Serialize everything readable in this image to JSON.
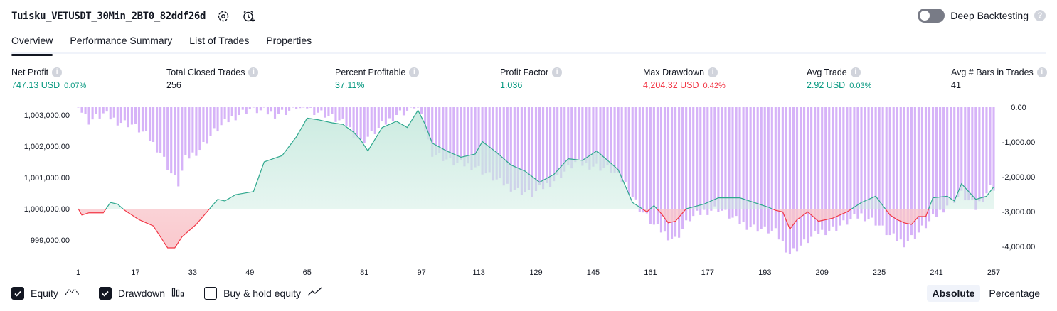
{
  "header": {
    "strategy_name": "Tuisku_VETUSDT_30Min_2BT0_82ddf26d",
    "icons": [
      "settings-gear-icon",
      "add-alert-clock-icon"
    ],
    "deep_backtesting_label": "Deep Backtesting",
    "deep_backtesting_enabled": false,
    "help_glyph": "?"
  },
  "tabs": [
    {
      "label": "Overview",
      "active": true
    },
    {
      "label": "Performance Summary",
      "active": false
    },
    {
      "label": "List of Trades",
      "active": false
    },
    {
      "label": "Properties",
      "active": false
    }
  ],
  "metrics": [
    {
      "label": "Net Profit",
      "value": "747.13 USD",
      "pct": "0.07%",
      "color": "green"
    },
    {
      "label": "Total Closed Trades",
      "value": "256",
      "pct": "",
      "color": "black"
    },
    {
      "label": "Percent Profitable",
      "value": "37.11%",
      "pct": "",
      "color": "green"
    },
    {
      "label": "Profit Factor",
      "value": "1.036",
      "pct": "",
      "color": "green"
    },
    {
      "label": "Max Drawdown",
      "value": "4,204.32 USD",
      "pct": "0.42%",
      "color": "red"
    },
    {
      "label": "Avg Trade",
      "value": "2.92 USD",
      "pct": "0.03%",
      "color": "green"
    },
    {
      "label": "Avg # Bars in Trades",
      "value": "41",
      "pct": "",
      "color": "black"
    }
  ],
  "colors": {
    "profit": "#089981",
    "loss": "#f23645",
    "equity_line_up": "#2fa88e",
    "equity_line_down": "#f23645",
    "equity_fill_up": "#c9eadf",
    "equity_fill_down": "#f9c6cb",
    "drawdown_bar": "#cfa6f7",
    "text": "#131722"
  },
  "chart_data": {
    "type": "line",
    "baseline": 1000000,
    "left_axis": {
      "ticks": [
        "1,003,000.00",
        "1,002,000.00",
        "1,001,000.00",
        "1,000,000.00",
        "999,000.00"
      ],
      "values": [
        1003000,
        1002000,
        1001000,
        1000000,
        999000
      ]
    },
    "right_axis": {
      "ticks": [
        "0.00",
        "-1,000.00",
        "-2,000.00",
        "-3,000.00",
        "-4,000.00"
      ],
      "values": [
        0,
        -1000,
        -2000,
        -3000,
        -4000
      ]
    },
    "x_ticks": [
      "1",
      "17",
      "33",
      "49",
      "65",
      "81",
      "97",
      "113",
      "129",
      "145",
      "161",
      "177",
      "193",
      "209",
      "225",
      "241",
      "257"
    ],
    "series": [
      {
        "name": "Equity",
        "keypoints": [
          [
            1,
            1000000
          ],
          [
            2,
            999800
          ],
          [
            4,
            999870
          ],
          [
            8,
            999870
          ],
          [
            10,
            1000200
          ],
          [
            12,
            1000150
          ],
          [
            14,
            999950
          ],
          [
            18,
            999650
          ],
          [
            22,
            999450
          ],
          [
            26,
            998750
          ],
          [
            28,
            998750
          ],
          [
            30,
            999100
          ],
          [
            34,
            999500
          ],
          [
            37,
            999900
          ],
          [
            40,
            1000300
          ],
          [
            42,
            1000250
          ],
          [
            45,
            1000450
          ],
          [
            50,
            1000550
          ],
          [
            53,
            1001500
          ],
          [
            58,
            1001700
          ],
          [
            62,
            1002300
          ],
          [
            65,
            1002900
          ],
          [
            68,
            1002850
          ],
          [
            72,
            1002750
          ],
          [
            75,
            1002700
          ],
          [
            78,
            1002450
          ],
          [
            80,
            1002200
          ],
          [
            82,
            1001850
          ],
          [
            86,
            1002600
          ],
          [
            90,
            1002800
          ],
          [
            93,
            1002600
          ],
          [
            96,
            1003150
          ],
          [
            98,
            1002700
          ],
          [
            100,
            1002100
          ],
          [
            104,
            1001850
          ],
          [
            108,
            1001650
          ],
          [
            112,
            1001750
          ],
          [
            114,
            1002150
          ],
          [
            118,
            1001800
          ],
          [
            122,
            1001400
          ],
          [
            126,
            1001200
          ],
          [
            130,
            1000850
          ],
          [
            134,
            1001100
          ],
          [
            138,
            1001600
          ],
          [
            142,
            1001550
          ],
          [
            146,
            1001850
          ],
          [
            148,
            1001650
          ],
          [
            152,
            1001250
          ],
          [
            156,
            1000200
          ],
          [
            158,
            1000050
          ],
          [
            160,
            999900
          ],
          [
            162,
            1000100
          ],
          [
            164,
            999850
          ],
          [
            166,
            999550
          ],
          [
            168,
            999600
          ],
          [
            171,
            1000000
          ],
          [
            176,
            1000150
          ],
          [
            180,
            1000350
          ],
          [
            186,
            1000350
          ],
          [
            190,
            1000200
          ],
          [
            194,
            1000050
          ],
          [
            196,
            999950
          ],
          [
            198,
            999900
          ],
          [
            200,
            999350
          ],
          [
            202,
            999650
          ],
          [
            205,
            999900
          ],
          [
            208,
            999600
          ],
          [
            212,
            999700
          ],
          [
            216,
            999900
          ],
          [
            220,
            1000200
          ],
          [
            224,
            1000400
          ],
          [
            226,
            1000100
          ],
          [
            228,
            999800
          ],
          [
            230,
            999650
          ],
          [
            232,
            999550
          ],
          [
            234,
            999500
          ],
          [
            236,
            999750
          ],
          [
            238,
            999750
          ],
          [
            240,
            1000350
          ],
          [
            244,
            1000400
          ],
          [
            246,
            1000250
          ],
          [
            248,
            1000800
          ],
          [
            252,
            1000300
          ],
          [
            255,
            1000400
          ],
          [
            257,
            1000700
          ]
        ]
      },
      {
        "name": "Drawdown",
        "keypoints": [
          [
            1,
            0
          ],
          [
            4,
            -400
          ],
          [
            8,
            -200
          ],
          [
            12,
            -400
          ],
          [
            16,
            -500
          ],
          [
            20,
            -800
          ],
          [
            24,
            -1300
          ],
          [
            27,
            -1900
          ],
          [
            29,
            -2200
          ],
          [
            31,
            -1500
          ],
          [
            35,
            -1200
          ],
          [
            39,
            -700
          ],
          [
            44,
            -300
          ],
          [
            49,
            -50
          ],
          [
            56,
            -200
          ],
          [
            64,
            0
          ],
          [
            70,
            -200
          ],
          [
            76,
            -500
          ],
          [
            80,
            -1000
          ],
          [
            84,
            -700
          ],
          [
            90,
            -200
          ],
          [
            96,
            0
          ],
          [
            100,
            -1300
          ],
          [
            106,
            -1600
          ],
          [
            112,
            -1700
          ],
          [
            118,
            -2100
          ],
          [
            124,
            -2400
          ],
          [
            128,
            -2500
          ],
          [
            134,
            -2100
          ],
          [
            140,
            -1600
          ],
          [
            146,
            -1700
          ],
          [
            150,
            -1800
          ],
          [
            154,
            -2200
          ],
          [
            158,
            -2900
          ],
          [
            162,
            -3400
          ],
          [
            166,
            -3700
          ],
          [
            168,
            -3800
          ],
          [
            172,
            -3200
          ],
          [
            176,
            -3000
          ],
          [
            180,
            -2900
          ],
          [
            184,
            -3200
          ],
          [
            188,
            -3400
          ],
          [
            192,
            -3500
          ],
          [
            196,
            -3600
          ],
          [
            200,
            -4200
          ],
          [
            204,
            -3900
          ],
          [
            208,
            -3600
          ],
          [
            212,
            -3500
          ],
          [
            216,
            -3300
          ],
          [
            220,
            -3100
          ],
          [
            224,
            -3300
          ],
          [
            228,
            -3700
          ],
          [
            232,
            -3900
          ],
          [
            236,
            -3600
          ],
          [
            240,
            -3200
          ],
          [
            244,
            -2800
          ],
          [
            248,
            -2500
          ],
          [
            252,
            -2900
          ],
          [
            256,
            -2300
          ],
          [
            257,
            -2300
          ]
        ]
      }
    ]
  },
  "legend": [
    {
      "label": "Equity",
      "checked": true,
      "icon": "equity-line-icon"
    },
    {
      "label": "Drawdown",
      "checked": true,
      "icon": "drawdown-bars-icon"
    },
    {
      "label": "Buy & hold equity",
      "checked": false,
      "icon": "buy-hold-line-icon"
    }
  ],
  "view_modes": [
    {
      "label": "Absolute",
      "selected": true
    },
    {
      "label": "Percentage",
      "selected": false
    }
  ]
}
